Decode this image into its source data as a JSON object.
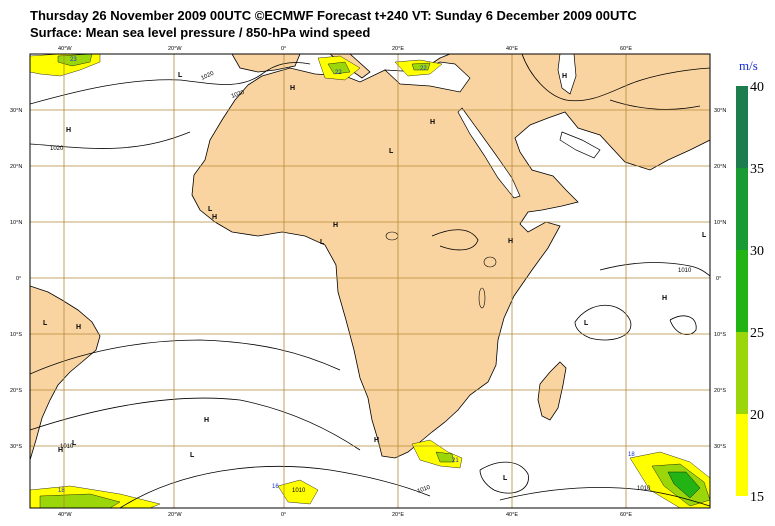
{
  "header": {
    "line1": "Thursday 26 November 2009 00UTC ©ECMWF Forecast t+240 VT: Sunday 6 December 2009 00UTC",
    "line2": "Surface: Mean sea level pressure / 850-hPa wind speed"
  },
  "map": {
    "land_color": "#fad4a0",
    "ocean_color": "#ffffff",
    "lon_labels": [
      "40°W",
      "20°W",
      "0°",
      "20°E",
      "40°E",
      "60°E"
    ],
    "lat_labels": [
      "30°N",
      "20°N",
      "10°N",
      "0°",
      "10°S",
      "20°S",
      "30°S"
    ],
    "pressure_labels": [
      "1020",
      "1020",
      "1020",
      "1010",
      "1010",
      "1010",
      "1010",
      "1010"
    ],
    "pressure_centers": [
      "H",
      "H",
      "H",
      "H",
      "H",
      "H",
      "H",
      "H",
      "H",
      "H",
      "H",
      "H",
      "L",
      "L",
      "L",
      "L",
      "L",
      "L",
      "L",
      "L",
      "L",
      "L"
    ],
    "wind_labels": [
      "23",
      "22",
      "22",
      "18",
      "18",
      "16",
      "21"
    ]
  },
  "legend": {
    "unit": "m/s",
    "ticks": [
      "40",
      "35",
      "30",
      "25",
      "20",
      "15"
    ],
    "colors": {
      "c35_40": "#1e7d4f",
      "c30_35": "#199a32",
      "c25_30": "#22b414",
      "c20_25": "#9bd60a",
      "c15_20": "#ffff00"
    }
  }
}
